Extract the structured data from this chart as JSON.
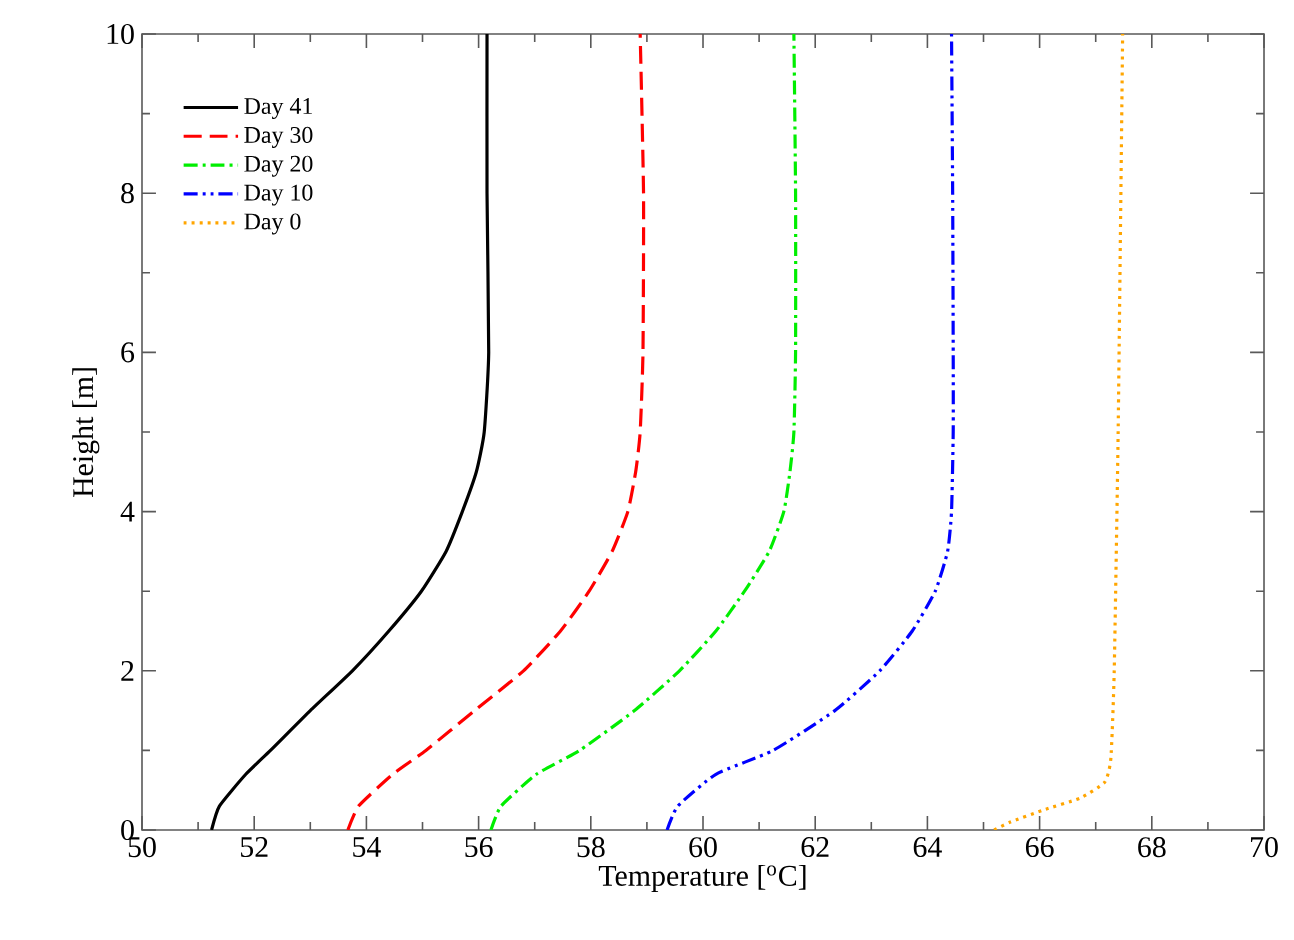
{
  "chart_data": {
    "type": "line",
    "xlabel": "Temperature [$^{o}$C]",
    "ylabel": "Height [m]",
    "xlim": [
      50,
      70
    ],
    "xticks": [
      50,
      52,
      54,
      56,
      58,
      60,
      62,
      64,
      66,
      68,
      70
    ],
    "ylim": [
      0,
      10
    ],
    "yticks": [
      0,
      2,
      4,
      6,
      8,
      10
    ],
    "legend": "top left",
    "grid": false,
    "marker": "none",
    "series": [
      {
        "name": "Day 41",
        "color": "#000000",
        "line_style": "solid",
        "x": [
          51.24,
          51.38,
          51.85,
          52.29,
          53.0,
          53.75,
          54.4,
          54.98,
          55.42,
          55.71,
          55.96,
          56.1,
          56.18,
          56.15,
          56.15
        ],
        "values": [
          0,
          0.3,
          0.7,
          1,
          1.5,
          2,
          2.5,
          3,
          3.5,
          4,
          4.5,
          5,
          6,
          8,
          10
        ]
      },
      {
        "name": "Day 30",
        "color": "#ff0000",
        "line_style": "dashed",
        "x": [
          53.67,
          53.86,
          54.47,
          55.06,
          55.93,
          56.8,
          57.46,
          57.97,
          58.38,
          58.66,
          58.8,
          58.88,
          58.93,
          58.94,
          58.88
        ],
        "values": [
          0,
          0.3,
          0.7,
          1,
          1.5,
          2,
          2.5,
          3,
          3.5,
          4,
          4.5,
          5,
          6,
          8,
          10
        ]
      },
      {
        "name": "Day 20",
        "color": "#00ee00",
        "line_style": "dashdot",
        "x": [
          56.22,
          56.4,
          57.03,
          57.8,
          58.78,
          59.58,
          60.23,
          60.74,
          61.18,
          61.44,
          61.55,
          61.62,
          61.65,
          61.65,
          61.62
        ],
        "values": [
          0,
          0.3,
          0.7,
          1,
          1.5,
          2,
          2.5,
          3,
          3.5,
          4,
          4.5,
          5,
          6,
          8,
          10
        ]
      },
      {
        "name": "Day 10",
        "color": "#0000ff",
        "line_style": "dashdotdot",
        "x": [
          59.36,
          59.55,
          60.23,
          61.25,
          62.35,
          63.15,
          63.73,
          64.14,
          64.36,
          64.43,
          64.46,
          64.46,
          64.45,
          64.43
        ],
        "values": [
          0,
          0.3,
          0.7,
          1,
          1.5,
          2,
          2.5,
          3,
          3.5,
          4,
          5,
          6,
          8,
          10
        ]
      },
      {
        "name": "Day 0",
        "color": "#ffa500",
        "line_style": "dotted",
        "x": [
          65.19,
          65.48,
          66.06,
          66.72,
          67.16,
          67.27,
          67.33,
          67.4,
          67.48
        ],
        "values": [
          0,
          0.1,
          0.25,
          0.4,
          0.6,
          0.9,
          2,
          5,
          10
        ]
      }
    ]
  }
}
